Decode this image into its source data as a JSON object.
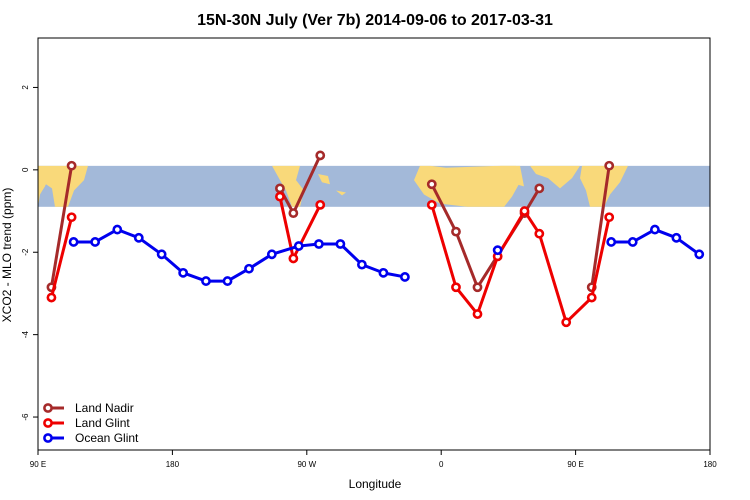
{
  "chart_data": {
    "type": "line",
    "title": "15N-30N July (Ver 7b)   2014-09-06 to 2017-03-31",
    "xlabel": "Longitude",
    "ylabel": "XCO2 - MLO trend (ppm)",
    "xlim": [
      0,
      100
    ],
    "ylim": [
      -6.8,
      3.2
    ],
    "x_ticks": [
      {
        "pos": 0,
        "label": "90 E"
      },
      {
        "pos": 20,
        "label": "180"
      },
      {
        "pos": 40,
        "label": "90 W"
      },
      {
        "pos": 60,
        "label": "0"
      },
      {
        "pos": 80,
        "label": "90 E"
      },
      {
        "pos": 100,
        "label": "180"
      }
    ],
    "y_ticks": [
      {
        "value": 2,
        "label": "2"
      },
      {
        "value": 0,
        "label": "0"
      },
      {
        "value": -2,
        "label": "-2"
      },
      {
        "value": -4,
        "label": "-4"
      },
      {
        "value": -6,
        "label": "-6"
      }
    ],
    "map_band": {
      "ymin": -0.9,
      "ymax": 0.1,
      "ocean_color": "#a3b9d9",
      "land_color": "#f9d97a"
    },
    "series": [
      {
        "name": "Land Nadir",
        "color": "#a52a2a",
        "segments": [
          [
            [
              2.0,
              -2.85
            ],
            [
              5.0,
              0.1
            ]
          ],
          [
            [
              36.0,
              -0.45
            ],
            [
              38.0,
              -1.05
            ],
            [
              42.0,
              0.35
            ]
          ],
          [
            [
              58.6,
              -0.35
            ],
            [
              62.2,
              -1.5
            ],
            [
              65.4,
              -2.85
            ],
            [
              72.4,
              -1.05
            ],
            [
              74.6,
              -0.45
            ]
          ],
          [
            [
              82.4,
              -2.85
            ],
            [
              85.0,
              0.1
            ]
          ]
        ]
      },
      {
        "name": "Land Glint",
        "color": "#ee0000",
        "segments": [
          [
            [
              2.0,
              -3.1
            ],
            [
              5.0,
              -1.15
            ]
          ],
          [
            [
              36.0,
              -0.65
            ],
            [
              38.0,
              -2.15
            ],
            [
              42.0,
              -0.85
            ]
          ],
          [
            [
              58.6,
              -0.85
            ],
            [
              62.2,
              -2.85
            ],
            [
              65.4,
              -3.5
            ],
            [
              68.4,
              -2.1
            ],
            [
              72.4,
              -1.0
            ],
            [
              74.6,
              -1.55
            ],
            [
              78.6,
              -3.7
            ],
            [
              82.4,
              -3.1
            ],
            [
              85.0,
              -1.15
            ]
          ]
        ]
      },
      {
        "name": "Ocean Glint",
        "color": "#0000ee",
        "segments": [
          [
            [
              5.3,
              -1.75
            ],
            [
              8.5,
              -1.75
            ],
            [
              11.8,
              -1.45
            ],
            [
              15.0,
              -1.65
            ],
            [
              18.4,
              -2.05
            ],
            [
              21.6,
              -2.5
            ],
            [
              25.0,
              -2.7
            ],
            [
              28.2,
              -2.7
            ],
            [
              31.4,
              -2.4
            ],
            [
              34.8,
              -2.05
            ],
            [
              38.8,
              -1.85
            ],
            [
              41.8,
              -1.8
            ],
            [
              45.0,
              -1.8
            ],
            [
              48.2,
              -2.3
            ],
            [
              51.4,
              -2.5
            ],
            [
              54.6,
              -2.6
            ]
          ],
          [
            [
              68.4,
              -1.95
            ]
          ],
          [
            [
              85.3,
              -1.75
            ],
            [
              88.5,
              -1.75
            ],
            [
              91.8,
              -1.45
            ],
            [
              95.0,
              -1.65
            ],
            [
              98.4,
              -2.05
            ]
          ]
        ]
      }
    ],
    "legend": {
      "position": "bottom-left",
      "entries": [
        "Land Nadir",
        "Land Glint",
        "Ocean Glint"
      ]
    }
  }
}
